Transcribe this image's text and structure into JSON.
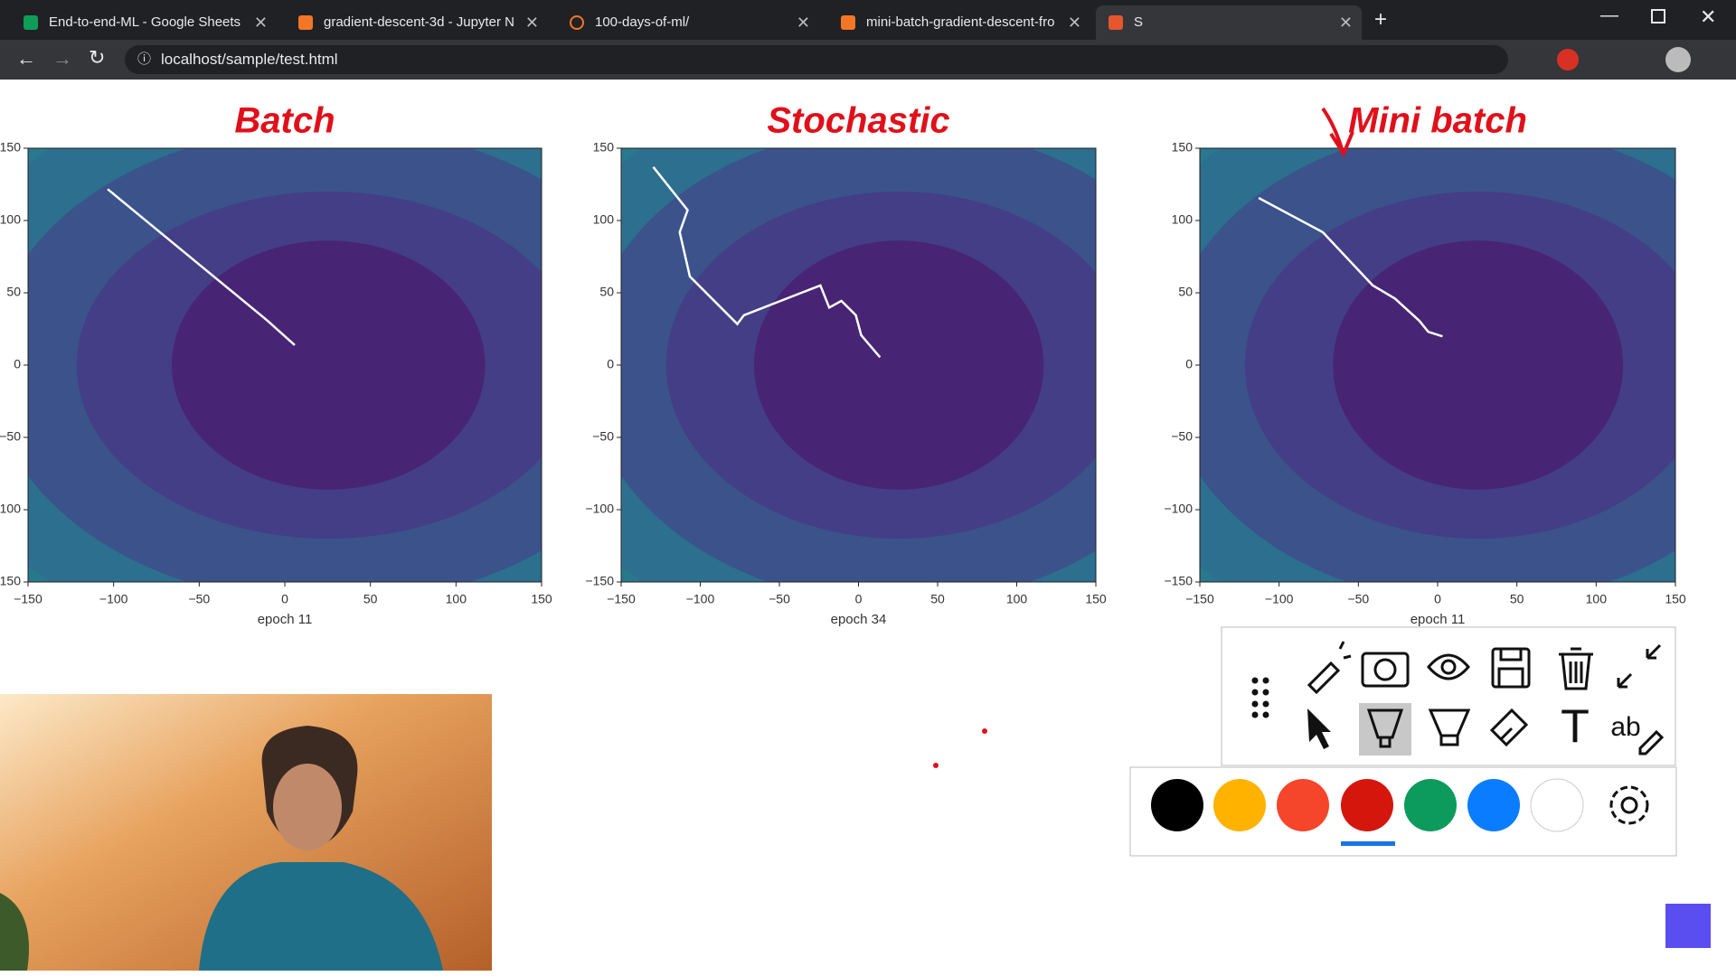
{
  "browser": {
    "tabs": [
      "End-to-end-ML - Google Sheets",
      "gradient-descent-3d - Jupyter N",
      "100-days-of-ml/",
      "mini-batch-gradient-descent-fro",
      "S"
    ],
    "url": "localhost/sample/test.html"
  },
  "toolbar": {
    "text_glyph": "T",
    "highlight_glyph": "ab"
  },
  "chart_data": [
    {
      "type": "line",
      "annotation": "Batch",
      "xlabel": "epoch 11",
      "color": "#ffffff",
      "x": [
        -103.5,
        -80,
        -55,
        -30,
        -10,
        5.8
      ],
      "values": [
        121.7,
        98.8,
        74.4,
        50.1,
        30.6,
        13.8
      ],
      "xlim": [
        -150,
        150
      ],
      "ylim": [
        -150,
        150
      ],
      "xticks": [
        {
          "value": -150,
          "label": "−150"
        },
        {
          "value": -100,
          "label": "−100"
        },
        {
          "value": -50,
          "label": "−50"
        },
        0,
        50,
        100,
        150
      ],
      "yticks": [
        {
          "value": -150,
          "label": "−150"
        },
        {
          "value": -100,
          "label": "−100"
        },
        {
          "value": -50,
          "label": "−50"
        },
        0,
        50,
        100,
        150
      ]
    },
    {
      "type": "line",
      "annotation": "Stochastic",
      "xlabel": "epoch 34",
      "color": "#ffffff",
      "x": [
        -129.7,
        -108,
        -113,
        -106.6,
        -76.6,
        -72.4,
        -24.1,
        -18.5,
        -10.8,
        -1.7,
        1.7,
        5.9,
        13.6
      ],
      "values": [
        137,
        107.2,
        91.9,
        61.3,
        28.4,
        34.5,
        55.1,
        39.8,
        44.4,
        34.5,
        20.7,
        15.3,
        5.4
      ],
      "xlim": [
        -150,
        150
      ],
      "ylim": [
        -150,
        150
      ],
      "xticks": [
        {
          "value": -150,
          "label": "−150"
        },
        {
          "value": -100,
          "label": "−100"
        },
        {
          "value": -50,
          "label": "−50"
        },
        0,
        50,
        100,
        150
      ],
      "yticks": [
        {
          "value": -150,
          "label": "−150"
        },
        {
          "value": -100,
          "label": "−100"
        },
        {
          "value": -50,
          "label": "−50"
        },
        0,
        50,
        100,
        150
      ]
    },
    {
      "type": "line",
      "annotation": "Mini batch",
      "xlabel": "epoch 11",
      "color": "#ffffff",
      "x": [
        -112.9,
        -72.4,
        -40.9,
        -26.9,
        -11.5,
        -5.9,
        3.1
      ],
      "values": [
        115.6,
        91.9,
        55.1,
        46,
        30.6,
        23,
        19.9
      ],
      "xlim": [
        -150,
        150
      ],
      "ylim": [
        -150,
        150
      ],
      "xticks": [
        {
          "value": -150,
          "label": "−150"
        },
        {
          "value": -100,
          "label": "−100"
        },
        {
          "value": -50,
          "label": "−50"
        },
        0,
        50,
        100,
        150
      ],
      "yticks": [
        {
          "value": -150,
          "label": "−150"
        },
        {
          "value": -100,
          "label": "−100"
        },
        {
          "value": -50,
          "label": "−50"
        },
        0,
        50,
        100,
        150
      ]
    }
  ]
}
